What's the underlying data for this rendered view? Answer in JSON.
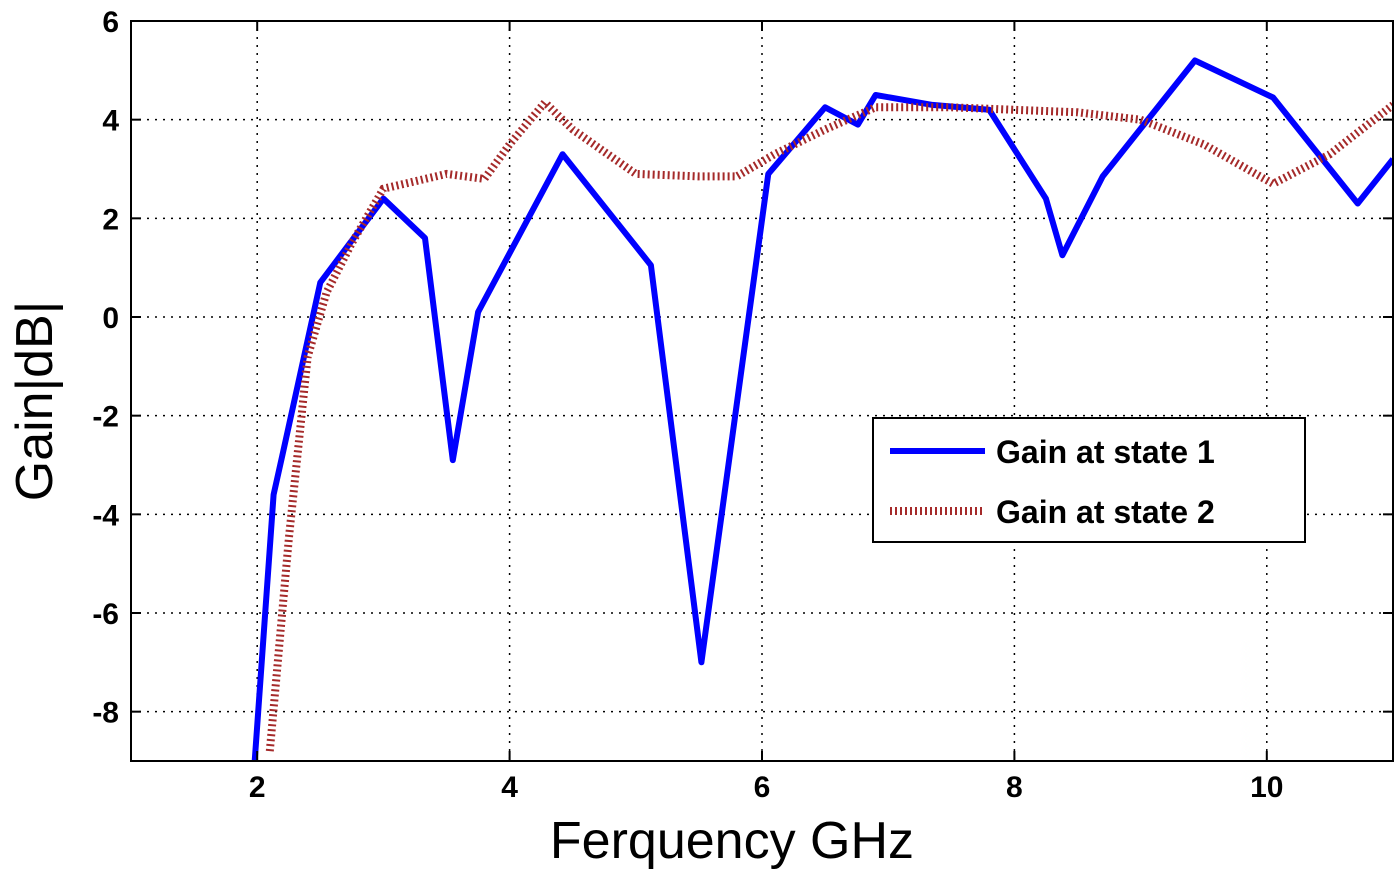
{
  "chart_data": {
    "type": "line",
    "title": "",
    "xlabel": "Ferquency GHz",
    "ylabel": "Gain|dB|",
    "xlim": [
      1,
      11
    ],
    "ylim": [
      -9,
      6
    ],
    "xticks": [
      2,
      4,
      6,
      8,
      10
    ],
    "yticks": [
      -8,
      -6,
      -4,
      -2,
      0,
      2,
      4,
      6
    ],
    "xtick_labels": [
      "2",
      "4",
      "6",
      "8",
      "10"
    ],
    "ytick_labels": [
      "-8",
      "-6",
      "-4",
      "-2",
      "0",
      "2",
      "4",
      "6"
    ],
    "grid": true,
    "legend_position": "middle-right",
    "series": [
      {
        "name": "Gain at state 1",
        "color": "#0000ff",
        "style": "solid",
        "x": [
          1.98,
          2.13,
          2.2,
          2.5,
          3.0,
          3.33,
          3.55,
          3.75,
          4.42,
          5.12,
          5.52,
          6.05,
          6.5,
          6.76,
          6.9,
          7.35,
          7.8,
          8.25,
          8.38,
          8.7,
          9.43,
          10.05,
          10.72,
          11.0
        ],
        "y": [
          -9.0,
          -3.6,
          -2.8,
          0.7,
          2.4,
          1.6,
          -2.9,
          0.1,
          3.3,
          1.05,
          -7.0,
          2.9,
          4.25,
          3.9,
          4.5,
          4.3,
          4.2,
          2.4,
          1.25,
          2.85,
          5.2,
          4.45,
          2.3,
          3.2
        ]
      },
      {
        "name": "Gain at state 2",
        "color": "#a52a2a",
        "style": "dotted",
        "x": [
          2.1,
          2.25,
          2.4,
          2.55,
          2.75,
          3.0,
          3.5,
          3.8,
          4.0,
          4.28,
          4.5,
          5.0,
          5.5,
          5.8,
          6.1,
          6.5,
          6.9,
          7.5,
          8.0,
          8.5,
          9.0,
          9.5,
          10.05,
          10.5,
          11.0
        ],
        "y": [
          -8.8,
          -4.5,
          -0.8,
          0.5,
          1.5,
          2.6,
          2.9,
          2.8,
          3.5,
          4.35,
          3.8,
          2.9,
          2.85,
          2.85,
          3.3,
          3.8,
          4.25,
          4.25,
          4.2,
          4.15,
          4.0,
          3.5,
          2.7,
          3.3,
          4.3
        ]
      }
    ]
  }
}
